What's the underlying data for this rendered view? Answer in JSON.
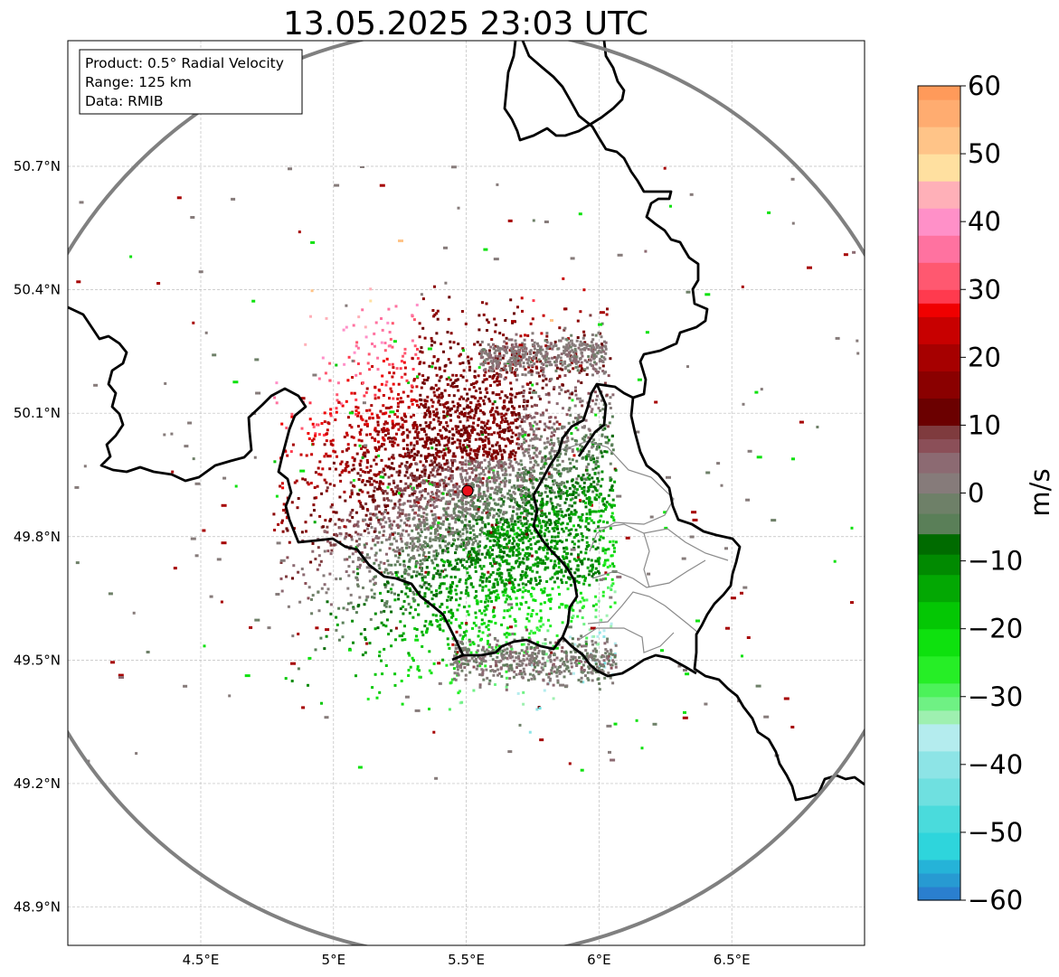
{
  "title": "13.05.2025 23:03 UTC",
  "info_box": {
    "product": "Product: 0.5° Radial Velocity",
    "range": "Range: 125 km",
    "data_source": "Data: RMIB"
  },
  "axes": {
    "lon_ticks": [
      {
        "value": 4.5,
        "label": "4.5°E"
      },
      {
        "value": 5.0,
        "label": "5°E"
      },
      {
        "value": 5.5,
        "label": "5.5°E"
      },
      {
        "value": 6.0,
        "label": "6°E"
      },
      {
        "value": 6.5,
        "label": "6.5°E"
      }
    ],
    "lat_ticks": [
      {
        "value": 50.7,
        "label": "50.7°N"
      },
      {
        "value": 50.4,
        "label": "50.4°N"
      },
      {
        "value": 50.1,
        "label": "50.1°N"
      },
      {
        "value": 49.8,
        "label": "49.8°N"
      },
      {
        "value": 49.5,
        "label": "49.5°N"
      },
      {
        "value": 49.2,
        "label": "49.2°N"
      },
      {
        "value": 48.9,
        "label": "48.9°N"
      }
    ],
    "lon_range": [
      4.0,
      7.0
    ],
    "lat_range": [
      48.8,
      51.0
    ],
    "grid": true
  },
  "radar_site": {
    "lon": 5.505,
    "lat": 49.914,
    "marker_color": "#e8101a"
  },
  "range_ring_color": "#808080",
  "colorbar": {
    "label": "m/s",
    "min": -60,
    "max": 60,
    "tick_labels": [
      {
        "value": 60,
        "label": "60"
      },
      {
        "value": 50,
        "label": "50"
      },
      {
        "value": 40,
        "label": "40"
      },
      {
        "value": 30,
        "label": "30"
      },
      {
        "value": 20,
        "label": "20"
      },
      {
        "value": 10,
        "label": "10"
      },
      {
        "value": 0,
        "label": "0"
      },
      {
        "value": -10,
        "label": "−10"
      },
      {
        "value": -20,
        "label": "−20"
      },
      {
        "value": -30,
        "label": "−30"
      },
      {
        "value": -40,
        "label": "−40"
      },
      {
        "value": -50,
        "label": "−50"
      },
      {
        "value": -60,
        "label": "−60"
      }
    ],
    "stops": [
      {
        "from": -60,
        "to": -58,
        "color": "#2a7fcf"
      },
      {
        "from": -58,
        "to": -56,
        "color": "#279ad2"
      },
      {
        "from": -56,
        "to": -54,
        "color": "#25b3d8"
      },
      {
        "from": -54,
        "to": -50,
        "color": "#2ed5dc"
      },
      {
        "from": -50,
        "to": -46,
        "color": "#4adbdc"
      },
      {
        "from": -46,
        "to": -42,
        "color": "#6fe0e0"
      },
      {
        "from": -42,
        "to": -38,
        "color": "#8de4e6"
      },
      {
        "from": -38,
        "to": -34,
        "color": "#b4ecee"
      },
      {
        "from": -34,
        "to": -32,
        "color": "#9ef0b0"
      },
      {
        "from": -32,
        "to": -30,
        "color": "#6ff184"
      },
      {
        "from": -30,
        "to": -28,
        "color": "#4cf25a"
      },
      {
        "from": -28,
        "to": -24,
        "color": "#26ee26"
      },
      {
        "from": -24,
        "to": -20,
        "color": "#0ee10e"
      },
      {
        "from": -20,
        "to": -16,
        "color": "#04c704"
      },
      {
        "from": -16,
        "to": -12,
        "color": "#03a803"
      },
      {
        "from": -12,
        "to": -9,
        "color": "#018a01"
      },
      {
        "from": -9,
        "to": -6,
        "color": "#006b00"
      },
      {
        "from": -6,
        "to": -3,
        "color": "#5a7f58"
      },
      {
        "from": -3,
        "to": 0,
        "color": "#6e8068"
      },
      {
        "from": 0,
        "to": 3,
        "color": "#867b7a"
      },
      {
        "from": 3,
        "to": 6,
        "color": "#8c6a72"
      },
      {
        "from": 6,
        "to": 8,
        "color": "#8b4f58"
      },
      {
        "from": 8,
        "to": 10,
        "color": "#7f3b3e"
      },
      {
        "from": 10,
        "to": 14,
        "color": "#6b0000"
      },
      {
        "from": 14,
        "to": 18,
        "color": "#8a0000"
      },
      {
        "from": 18,
        "to": 22,
        "color": "#a60000"
      },
      {
        "from": 22,
        "to": 26,
        "color": "#c80000"
      },
      {
        "from": 26,
        "to": 28,
        "color": "#f00000"
      },
      {
        "from": 28,
        "to": 30,
        "color": "#ff3a4e"
      },
      {
        "from": 30,
        "to": 34,
        "color": "#ff5870"
      },
      {
        "from": 34,
        "to": 38,
        "color": "#ff72a0"
      },
      {
        "from": 38,
        "to": 42,
        "color": "#ff90c8"
      },
      {
        "from": 42,
        "to": 46,
        "color": "#ffb0b8"
      },
      {
        "from": 46,
        "to": 50,
        "color": "#ffe0a0"
      },
      {
        "from": 50,
        "to": 54,
        "color": "#ffc488"
      },
      {
        "from": 54,
        "to": 58,
        "color": "#ffac70"
      },
      {
        "from": 58,
        "to": 60,
        "color": "#ff9a5a"
      }
    ]
  }
}
